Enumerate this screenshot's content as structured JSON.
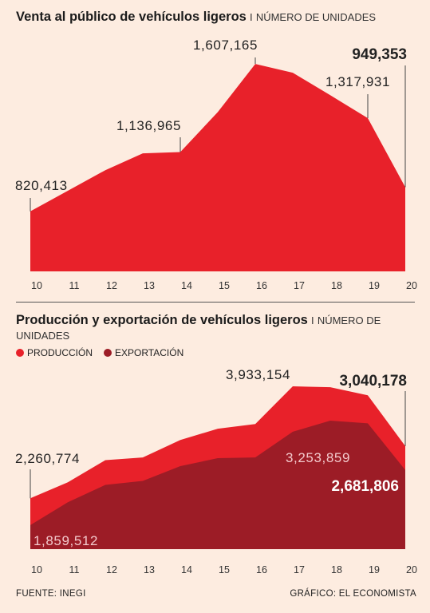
{
  "colors": {
    "background": "#fdece0",
    "sales_area": "#e8212a",
    "produccion": "#e8212a",
    "exportacion": "#9c1c26",
    "leader": "#444444"
  },
  "chart1": {
    "title": "Venta al público de vehículos ligeros",
    "separator": "I",
    "unit": "NÚMERO DE UNIDADES"
  },
  "chart2": {
    "title": "Producción y exportación de vehículos ligeros",
    "separator": "I",
    "unit": "NÚMERO DE UNIDADES",
    "legend": [
      {
        "label": "PRODUCCIÓN",
        "color": "#e8212a"
      },
      {
        "label": "EXPORTACIÓN",
        "color": "#9c1c26"
      }
    ]
  },
  "footer": {
    "source": "FUENTE: INEGI",
    "credit": "GRÁFICO: EL ECONOMISTA"
  },
  "chart_data": [
    {
      "type": "area",
      "title": "Venta al público de vehículos ligeros",
      "ylabel": "NÚMERO DE UNIDADES",
      "x": [
        "10",
        "11",
        "12",
        "13",
        "14",
        "15",
        "16",
        "17",
        "18",
        "19",
        "20"
      ],
      "series": [
        {
          "values": [
            820413,
            930000,
            1040000,
            1130000,
            1136965,
            1350000,
            1607165,
            1560000,
            1440000,
            1317931,
            949353
          ]
        }
      ],
      "annotations": [
        {
          "x": "10",
          "text": "820,413",
          "bold": false
        },
        {
          "x": "14",
          "text": "1,136,965",
          "bold": false
        },
        {
          "x": "16",
          "text": "1,607,165",
          "bold": false
        },
        {
          "x": "19",
          "text": "1,317,931",
          "bold": false
        },
        {
          "x": "20",
          "text": "949,353",
          "bold": true
        }
      ],
      "grid": false
    },
    {
      "type": "area",
      "title": "Producción y exportación de vehículos ligeros",
      "ylabel": "NÚMERO DE UNIDADES",
      "x": [
        "10",
        "11",
        "12",
        "13",
        "14",
        "15",
        "16",
        "17",
        "18",
        "19",
        "20"
      ],
      "series": [
        {
          "name": "PRODUCCIÓN",
          "values": [
            2260774,
            2500000,
            2830000,
            2870000,
            3130000,
            3300000,
            3370000,
            3933154,
            3920000,
            3800000,
            3040178
          ]
        },
        {
          "name": "EXPORTACIÓN",
          "values": [
            1859512,
            2200000,
            2460000,
            2520000,
            2740000,
            2860000,
            2870000,
            3253859,
            3420000,
            3380000,
            2681806
          ]
        }
      ],
      "annotations": [
        {
          "series": "PRODUCCIÓN",
          "x": "10",
          "text": "2,260,774",
          "bold": false
        },
        {
          "series": "PRODUCCIÓN",
          "x": "17",
          "text": "3,933,154",
          "bold": false
        },
        {
          "series": "PRODUCCIÓN",
          "x": "20",
          "text": "3,040,178",
          "bold": true
        },
        {
          "series": "EXPORTACIÓN",
          "x": "10",
          "text": "1,859,512",
          "bold": false
        },
        {
          "series": "EXPORTACIÓN",
          "x": "17",
          "text": "3,253,859",
          "bold": false
        },
        {
          "series": "EXPORTACIÓN",
          "x": "20",
          "text": "2,681,806",
          "bold": true
        }
      ],
      "legend_position": "top-left",
      "grid": false
    }
  ]
}
